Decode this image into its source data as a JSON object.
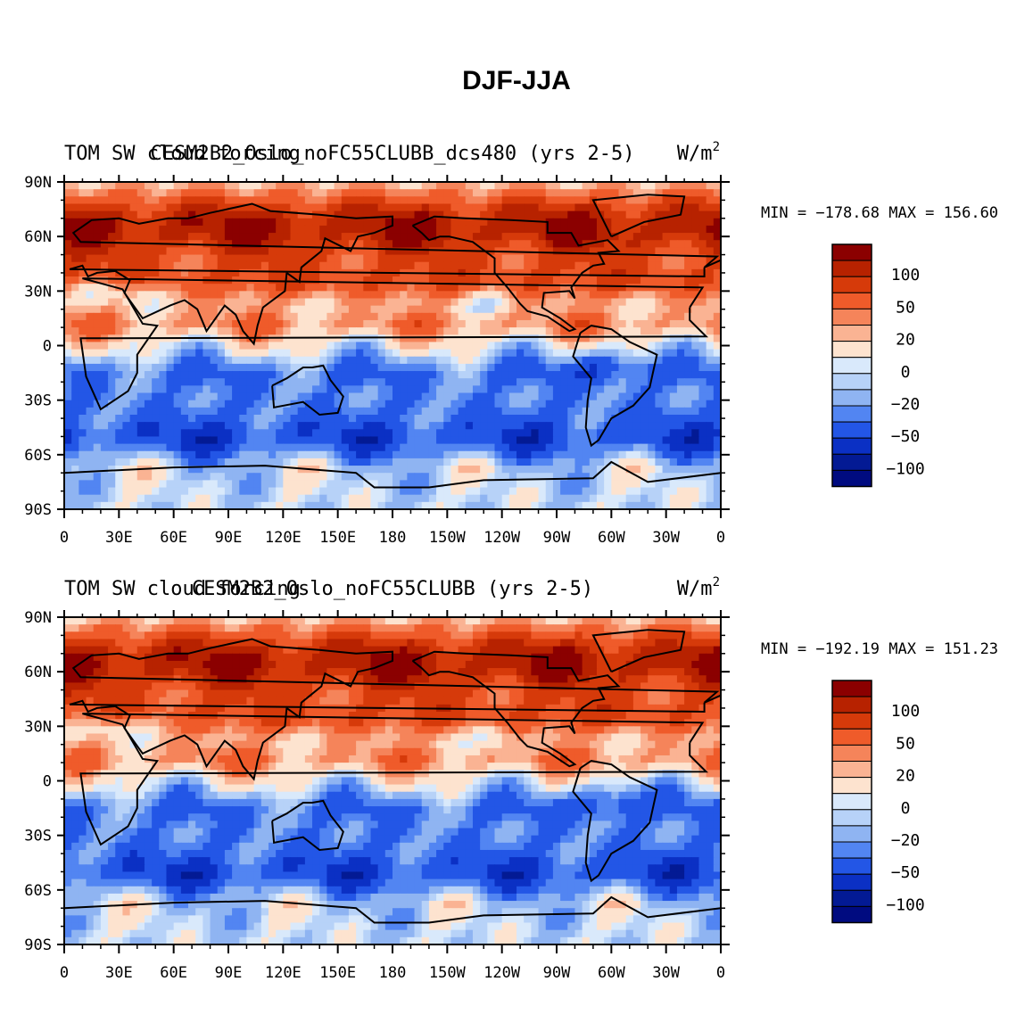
{
  "figure": {
    "title": "DJF-JJA"
  },
  "chart_data": [
    {
      "type": "heatmap",
      "left_title": "TOM SW cloud forcing",
      "center_title": "CESM2B2_Oslo_noFC55CLUBB_dcs480 (yrs 2-5)",
      "units": "W/m",
      "units_sup": "2",
      "stats": "MIN = −178.68 MAX = 156.60",
      "min": -178.68,
      "max": 156.6,
      "lat_ticks": [
        "90N",
        "60N",
        "30N",
        "0",
        "30S",
        "60S",
        "90S"
      ],
      "lon_ticks": [
        "0",
        "30E",
        "60E",
        "90E",
        "120E",
        "150E",
        "180",
        "150W",
        "120W",
        "90W",
        "60W",
        "30W",
        "0"
      ],
      "colorbar_labels": [
        "100",
        "50",
        "20",
        "0",
        "−20",
        "−50",
        "−100"
      ],
      "lat_range": [
        -90,
        90
      ],
      "lon_range": [
        0,
        360
      ]
    },
    {
      "type": "heatmap",
      "left_title": "TOM SW cloud forcing",
      "center_title": "CESM2B2_Oslo_noFC55CLUBB (yrs 2-5)",
      "units": "W/m",
      "units_sup": "2",
      "stats": "MIN = −192.19 MAX = 151.23",
      "min": -192.19,
      "max": 151.23,
      "lat_ticks": [
        "90N",
        "60N",
        "30N",
        "0",
        "30S",
        "60S",
        "90S"
      ],
      "lon_ticks": [
        "0",
        "30E",
        "60E",
        "90E",
        "120E",
        "150E",
        "180",
        "150W",
        "120W",
        "90W",
        "60W",
        "30W",
        "0"
      ],
      "colorbar_labels": [
        "100",
        "50",
        "20",
        "0",
        "−20",
        "−50",
        "−100"
      ],
      "lat_range": [
        -90,
        90
      ],
      "lon_range": [
        0,
        360
      ]
    }
  ],
  "colorbar_colors": [
    "#8b0000",
    "#b72200",
    "#d63a0a",
    "#ef5b2a",
    "#f5845a",
    "#fab393",
    "#fde3cf",
    "#d9e9fb",
    "#b7d2f8",
    "#8fb4f2",
    "#5285f2",
    "#2356e6",
    "#0b30c4",
    "#031a94",
    "#000b80"
  ]
}
